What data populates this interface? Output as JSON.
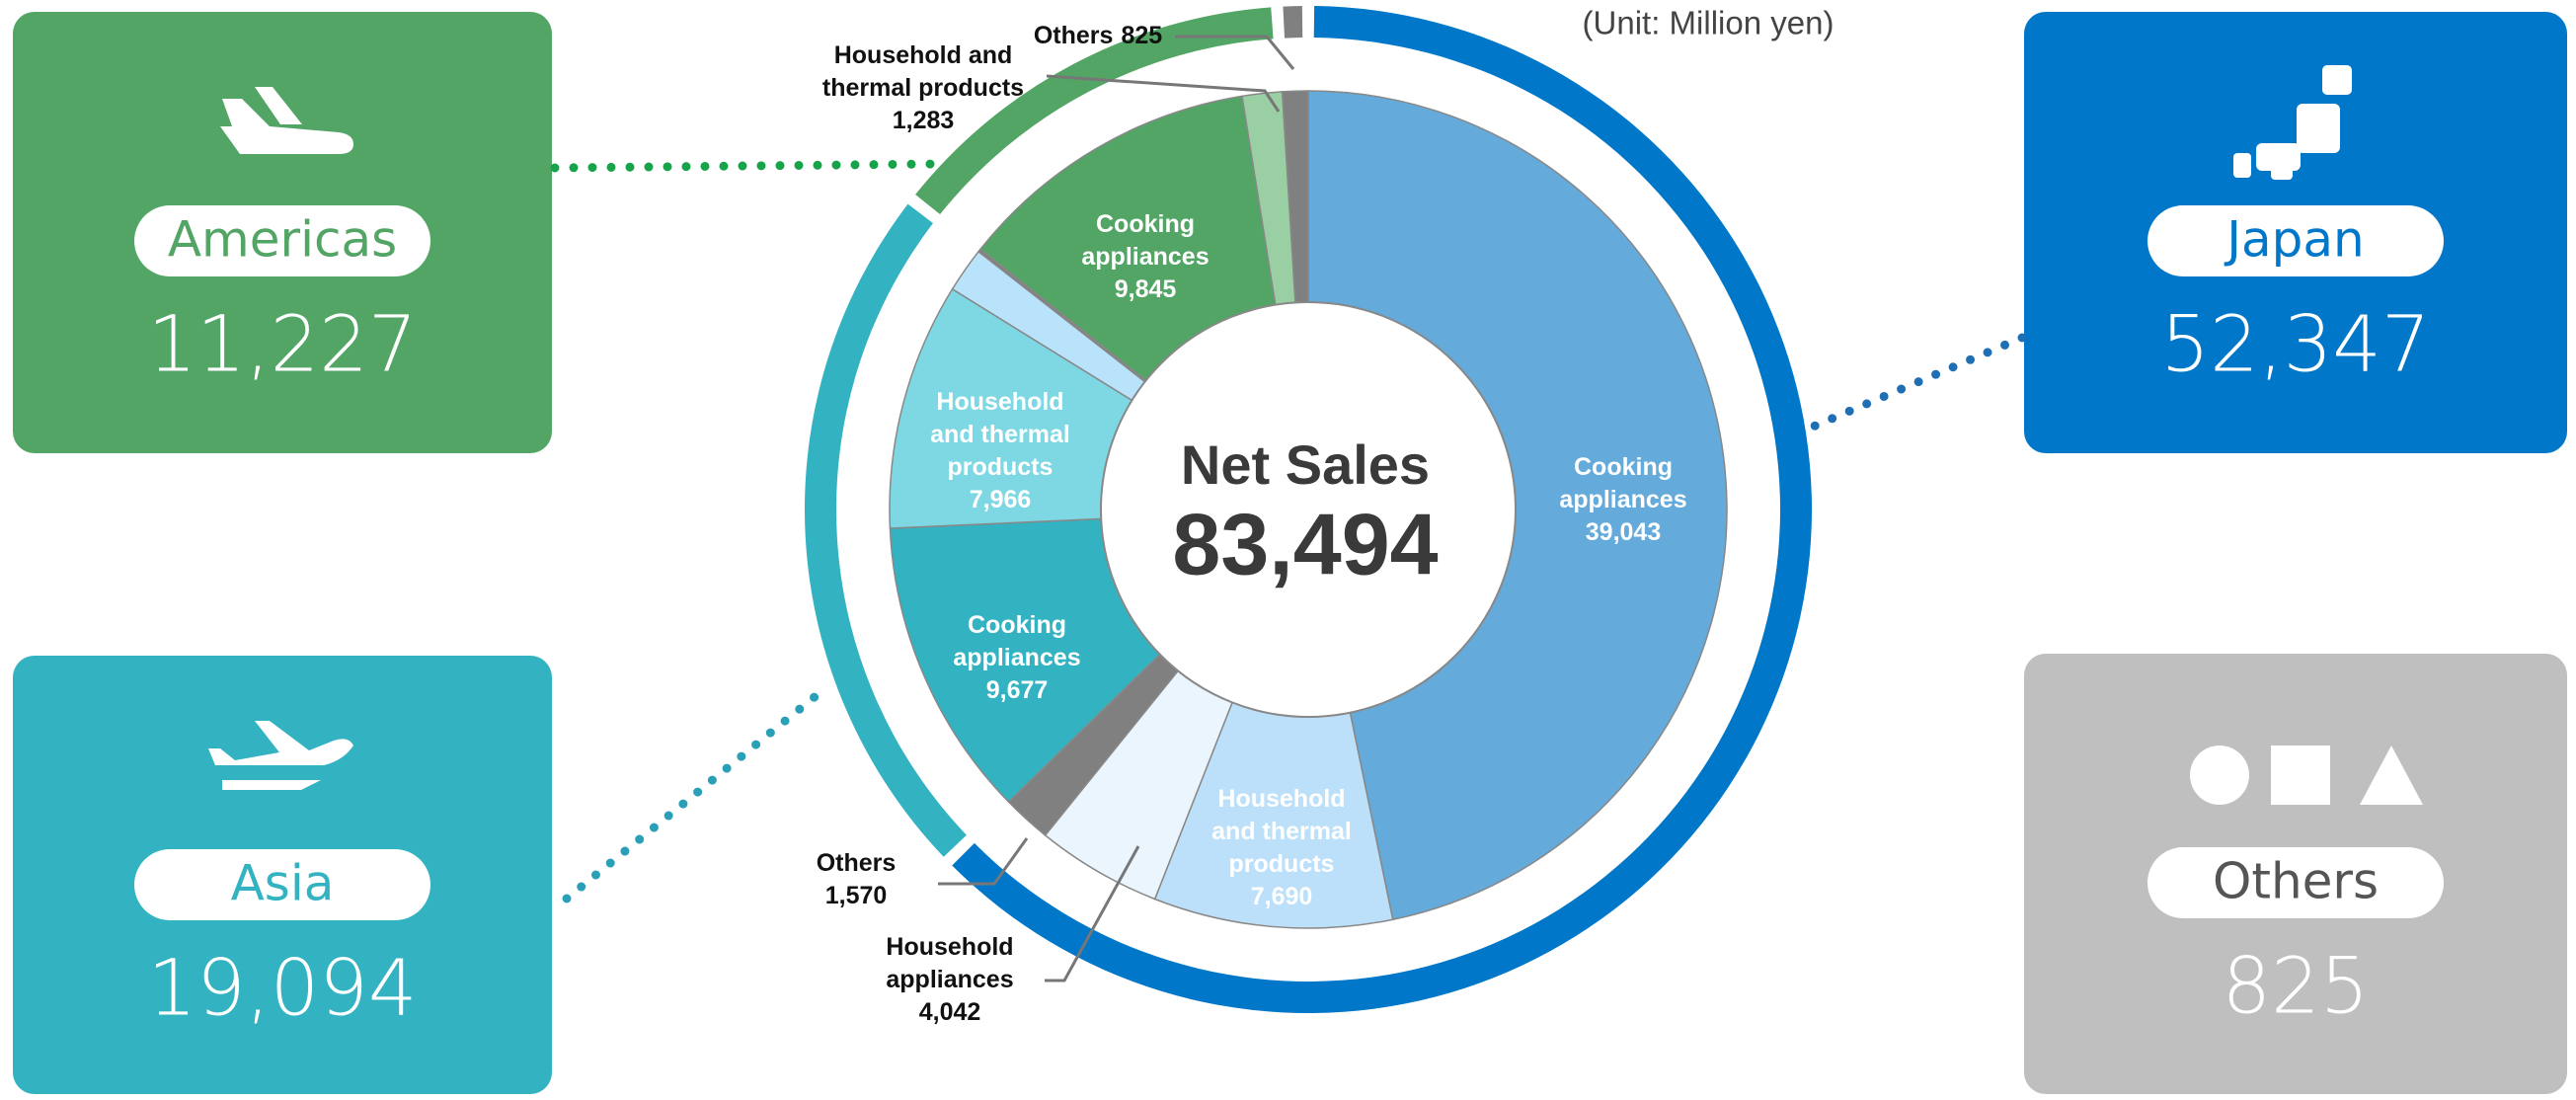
{
  "chart_data": {
    "type": "sunburst",
    "unit": "(Unit: Million yen)",
    "center_title": "Net Sales",
    "total": 83494,
    "total_label": "83,494",
    "regions": [
      {
        "name": "Japan",
        "value": 52347,
        "value_label": "52,347",
        "color": "#0077c8",
        "segments": [
          {
            "name": "Cooking appliances",
            "value": 39043,
            "value_label": "39,043",
            "color": "#64aadb"
          },
          {
            "name": "Household and thermal products",
            "value": 7690,
            "value_label": "7,690",
            "color": "#bde0fa"
          },
          {
            "name": "Household appliances",
            "value": 4042,
            "value_label": "4,042",
            "color": "#eaf5fd"
          },
          {
            "name": "Others",
            "value": 1570,
            "value_label": "1,570",
            "color": "#808080"
          }
        ]
      },
      {
        "name": "Asia",
        "value": 19094,
        "value_label": "19,094",
        "color": "#33b3c2",
        "segments": [
          {
            "name": "Cooking appliances",
            "value": 9677,
            "value_label": "9,677",
            "color": "#33b3c2"
          },
          {
            "name": "Household and thermal products",
            "value": 7966,
            "value_label": "7,966",
            "color": "#7dd8e4"
          },
          {
            "name": null,
            "value": 1451,
            "color": "#b9e3fa"
          }
        ]
      },
      {
        "name": "Americas",
        "value": 11227,
        "value_label": "11,227",
        "color": "#52a565",
        "segments": [
          {
            "name": null,
            "value": 99,
            "color": "#808080"
          },
          {
            "name": "Cooking appliances",
            "value": 9845,
            "value_label": "9,845",
            "color": "#52a565"
          },
          {
            "name": "Household and thermal products",
            "value": 1283,
            "value_label": "1,283",
            "color": "#99cfa2"
          }
        ]
      },
      {
        "name": "Others",
        "value": 825,
        "value_label": "825",
        "color": "#808080",
        "box_color": "#bfbfbf",
        "segments": [
          {
            "name": "Others",
            "value": 825,
            "value_label": "825",
            "color": "#808080"
          }
        ]
      }
    ]
  }
}
